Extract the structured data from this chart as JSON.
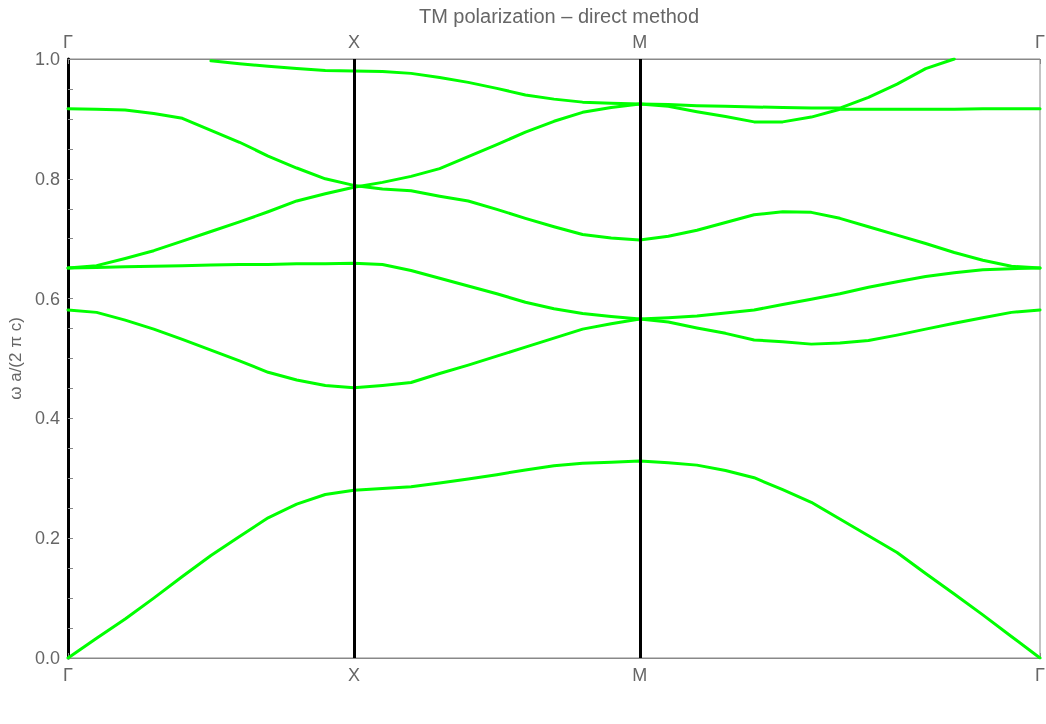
{
  "chart_data": {
    "type": "line",
    "title": "TM polarization – direct method",
    "ylabel": "ω a/(2 π c)",
    "categories": [
      "Γ",
      null,
      null,
      null,
      null,
      null,
      null,
      null,
      null,
      null,
      "X",
      null,
      null,
      null,
      null,
      null,
      null,
      null,
      null,
      null,
      "M",
      null,
      null,
      null,
      null,
      null,
      null,
      null,
      null,
      null,
      null,
      null,
      null,
      null,
      "Γ"
    ],
    "ylim": [
      0,
      1
    ],
    "yticks": [
      {
        "value": 0,
        "label": "0.0"
      },
      {
        "value": 0.05,
        "label": null
      },
      {
        "value": 0.1,
        "label": null
      },
      {
        "value": 0.15,
        "label": null
      },
      0.2,
      {
        "value": 0.25,
        "label": null
      },
      {
        "value": 0.3,
        "label": null
      },
      {
        "value": 0.35,
        "label": null
      },
      0.4,
      {
        "value": 0.45,
        "label": null
      },
      {
        "value": 0.5,
        "label": null
      },
      {
        "value": 0.55,
        "label": null
      },
      0.6,
      {
        "value": 0.65,
        "label": null
      },
      {
        "value": 0.7,
        "label": null
      },
      {
        "value": 0.75,
        "label": null
      },
      0.8,
      {
        "value": 0.85,
        "label": null
      },
      {
        "value": 0.9,
        "label": null
      },
      {
        "value": 0.95,
        "label": null
      },
      {
        "value": 1,
        "label": "1.0"
      }
    ],
    "marker": "none",
    "line_style": "solid",
    "ref_lines": [
      {
        "axis": "x",
        "value": "X",
        "color": "#000000"
      },
      {
        "axis": "x",
        "value": "M",
        "color": "#000000"
      }
    ],
    "series": [
      {
        "color": "#00ff00",
        "values": [
          0,
          0.033,
          0.065,
          0.1,
          0.136,
          0.171,
          0.203,
          0.234,
          0.257,
          0.273,
          0.28,
          0.283,
          0.286,
          0.292,
          0.299,
          0.306,
          0.314,
          0.321,
          0.325,
          0.327,
          0.329,
          0.326,
          0.322,
          0.313,
          0.301,
          0.281,
          0.26,
          0.232,
          0.204,
          0.176,
          0.141,
          0.107,
          0.072,
          0.036,
          0
        ]
      },
      {
        "color": "#00ff00",
        "values": [
          0.581,
          0.577,
          0.564,
          0.549,
          0.532,
          0.514,
          0.496,
          0.477,
          0.464,
          0.455,
          0.451,
          0.455,
          0.46,
          0.475,
          0.489,
          0.504,
          0.519,
          0.534,
          0.549,
          0.558,
          0.566,
          0.561,
          0.551,
          0.542,
          0.531,
          0.528,
          0.524,
          0.526,
          0.53,
          0.539,
          0.549,
          0.559,
          0.568,
          0.577,
          0.581
        ]
      },
      {
        "color": "#00ff00",
        "values": [
          0.651,
          0.652,
          0.653,
          0.654,
          0.655,
          0.656,
          0.657,
          0.657,
          0.658,
          0.658,
          0.659,
          0.657,
          0.647,
          0.634,
          0.621,
          0.608,
          0.594,
          0.583,
          0.575,
          0.57,
          0.566,
          0.568,
          0.571,
          0.576,
          0.581,
          0.59,
          0.599,
          0.608,
          0.619,
          0.628,
          0.637,
          0.643,
          0.648,
          0.65,
          0.651
        ]
      },
      {
        "color": "#00ff00",
        "values": [
          0.651,
          0.655,
          0.667,
          0.68,
          0.696,
          0.712,
          0.728,
          0.745,
          0.763,
          0.775,
          0.786,
          0.794,
          0.804,
          0.817,
          0.837,
          0.857,
          0.878,
          0.896,
          0.911,
          0.919,
          0.925,
          0.921,
          0.912,
          0.904,
          0.895,
          0.895,
          0.903,
          0.916,
          0.916,
          0.916,
          0.916,
          0.916,
          0.917,
          0.917,
          0.917
        ]
      },
      {
        "color": "#00ff00",
        "values": [
          0.917,
          0.916,
          0.915,
          0.909,
          0.901,
          0.881,
          0.861,
          0.838,
          0.818,
          0.8,
          0.789,
          0.783,
          0.78,
          0.771,
          0.763,
          0.749,
          0.734,
          0.72,
          0.707,
          0.701,
          0.698,
          0.704,
          0.714,
          0.727,
          0.74,
          0.745,
          0.744,
          0.734,
          0.72,
          0.706,
          0.692,
          0.677,
          0.664,
          0.654,
          0.651
        ]
      },
      {
        "color": "#00ff00",
        "values": [
          null,
          null,
          null,
          null,
          null,
          0.997,
          0.992,
          0.988,
          0.984,
          0.981,
          0.98,
          0.979,
          0.976,
          0.969,
          0.961,
          0.951,
          0.94,
          0.933,
          0.928,
          0.926,
          0.925,
          0.924,
          0.922,
          0.921,
          0.92,
          0.919,
          0.918,
          0.918,
          0.936,
          0.958,
          0.984,
          1,
          null,
          null,
          null
        ]
      }
    ]
  }
}
